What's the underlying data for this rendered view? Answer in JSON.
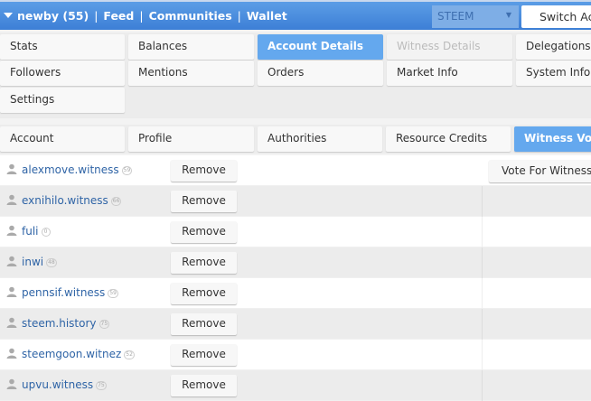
{
  "topbar": {
    "account": "newby (55)",
    "links": [
      "Feed",
      "Communities",
      "Wallet"
    ],
    "chain_select": "STEEM",
    "switch_account": "Switch Acc"
  },
  "menu": [
    {
      "label": "Stats"
    },
    {
      "label": "Balances"
    },
    {
      "label": "Account Details",
      "active": true
    },
    {
      "label": "Witness Details",
      "disabled": true
    },
    {
      "label": "Delegations"
    },
    {
      "label": "Followers"
    },
    {
      "label": "Mentions"
    },
    {
      "label": "Orders"
    },
    {
      "label": "Market Info"
    },
    {
      "label": "System Info"
    },
    {
      "label": "Settings"
    }
  ],
  "subtabs": [
    {
      "label": "Account"
    },
    {
      "label": "Profile"
    },
    {
      "label": "Authorities"
    },
    {
      "label": "Resource Credits"
    },
    {
      "label": "Witness Votes",
      "active": true
    }
  ],
  "vote_button": "Vote For Witness..",
  "remove_label": "Remove",
  "witnesses": [
    {
      "name": "alexmove.witness",
      "rep": "59"
    },
    {
      "name": "exnihilo.witness",
      "rep": "66"
    },
    {
      "name": "fuli",
      "rep": "0"
    },
    {
      "name": "inwi",
      "rep": "48"
    },
    {
      "name": "pennsif.witness",
      "rep": "59"
    },
    {
      "name": "steem.history",
      "rep": "75"
    },
    {
      "name": "steemgoon.witnez",
      "rep": "52"
    },
    {
      "name": "upvu.witness",
      "rep": "75"
    }
  ]
}
